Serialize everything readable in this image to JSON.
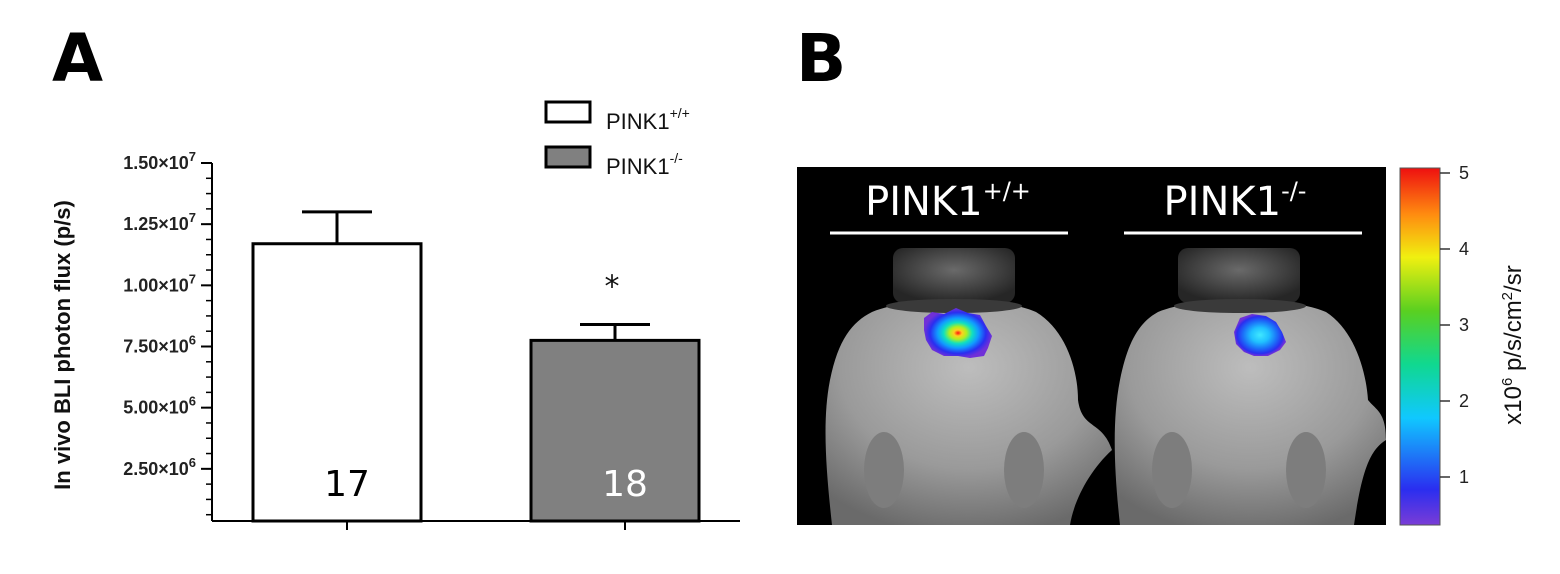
{
  "panels": {
    "a_label": "A",
    "b_label": "B"
  },
  "chart_data": {
    "type": "bar",
    "categories": [
      "PINK1+/+",
      "PINK1-/-"
    ],
    "values": [
      11700000,
      7750000
    ],
    "errors": [
      1300000,
      650000
    ],
    "n_labels": [
      "17",
      "18"
    ],
    "significance": [
      "",
      "*"
    ],
    "bar_colors": [
      "#ffffff",
      "#808080"
    ],
    "n_label_colors": [
      "#000000",
      "#ffffff"
    ],
    "ylabel": "In vivo BLI photon flux (p/s)",
    "ylim": [
      0,
      15000000
    ],
    "yticks": [
      {
        "value": 2500000,
        "mantissa": "2.50×10",
        "exp": "6"
      },
      {
        "value": 5000000,
        "mantissa": "5.00×10",
        "exp": "6"
      },
      {
        "value": 7500000,
        "mantissa": "7.50×10",
        "exp": "6"
      },
      {
        "value": 10000000,
        "mantissa": "1.00×10",
        "exp": "7"
      },
      {
        "value": 12500000,
        "mantissa": "1.25×10",
        "exp": "7"
      },
      {
        "value": 15000000,
        "mantissa": "1.50×10",
        "exp": "7"
      }
    ],
    "legend": [
      {
        "base": "PINK1",
        "sup": "+/+",
        "color": "#ffffff"
      },
      {
        "base": "PINK1",
        "sup": "-/-",
        "color": "#808080"
      }
    ],
    "legend_position": "top-right",
    "grid": false
  },
  "image_panel": {
    "labels": [
      {
        "base": "PINK1",
        "sup": "+/+"
      },
      {
        "base": "PINK1",
        "sup": "-/-"
      }
    ],
    "colorbar": {
      "ticks": [
        "1",
        "2",
        "3",
        "4",
        "5"
      ],
      "label_base": "x10",
      "label_exp": "6",
      "label_unit": " p/s/cm",
      "label_unit_exp": "2",
      "label_tail": "/sr"
    }
  }
}
